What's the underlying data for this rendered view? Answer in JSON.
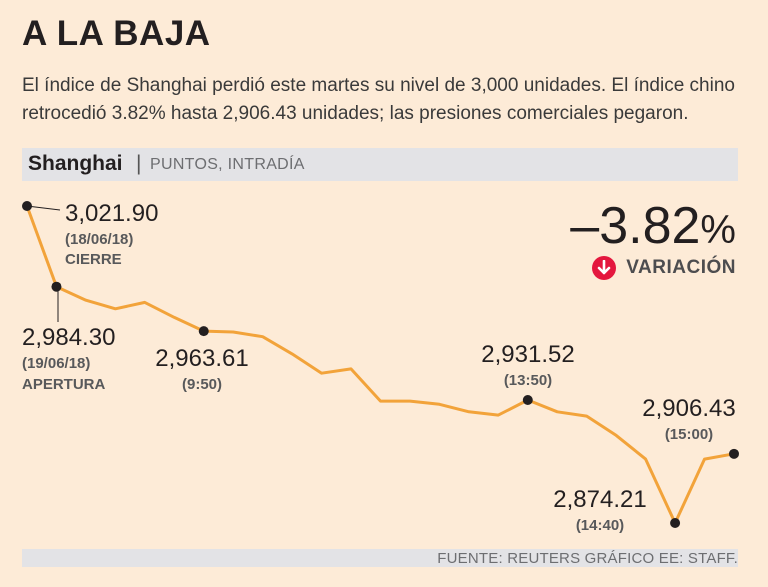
{
  "header": {
    "title": "A LA BAJA",
    "subtitle": "El índice de Shanghai perdió este martes su nivel de 3,000 unidades. El índice chino retrocedió 3.82% hasta 2,906.43 unidades; las presiones comerciales pegaron."
  },
  "panel": {
    "market": "Shanghai",
    "separator": "|",
    "units": "PUNTOS, INTRADÍA"
  },
  "variation": {
    "value": "–3.82",
    "unit": "%",
    "label": "VARIACIÓN",
    "icon": "down-arrow-icon",
    "icon_color": "#e4173e"
  },
  "footer": {
    "source": "FUENTE: REUTERS GRÁFICO EE: STAFF."
  },
  "colors": {
    "line": "#f2a33a",
    "background": "#fdebd7",
    "band": "#e3e3e6"
  },
  "chart_data": {
    "type": "line",
    "title": "Shanghai",
    "ylabel": "PUNTOS, INTRADÍA",
    "xlabel": "",
    "ylim": [
      2874.21,
      3021.9
    ],
    "series": [
      {
        "name": "Shanghai",
        "values": [
          3021.9,
          2984.3,
          2978,
          2974,
          2977,
          2970,
          2963.61,
          2963.2,
          2961,
          2953,
          2944,
          2946,
          2931,
          2931,
          2929.5,
          2926,
          2924.5,
          2931.52,
          2926,
          2924,
          2915,
          2904,
          2874.21,
          2904,
          2906.43
        ]
      }
    ],
    "annotations": [
      {
        "index": 0,
        "value": "3,021.90",
        "line2": "(18/06/18)",
        "line3": "CIERRE"
      },
      {
        "index": 1,
        "value": "2,984.30",
        "line2": "(19/06/18)",
        "line3": "APERTURA"
      },
      {
        "index": 6,
        "value": "2,963.61",
        "line2": "(9:50)"
      },
      {
        "index": 17,
        "value": "2,931.52",
        "line2": "(13:50)"
      },
      {
        "index": 22,
        "value": "2,874.21",
        "line2": "(14:40)"
      },
      {
        "index": 24,
        "value": "2,906.43",
        "line2": "(15:00)"
      }
    ]
  }
}
